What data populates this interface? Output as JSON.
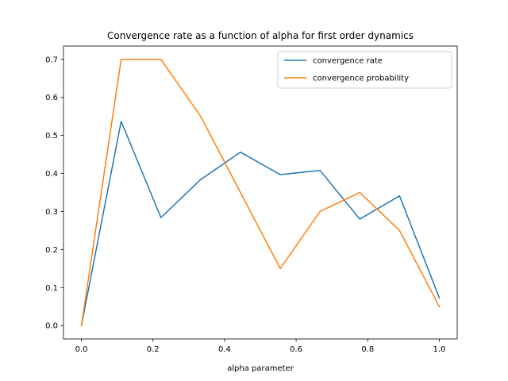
{
  "chart_data": {
    "type": "line",
    "title": "Convergence rate as a function of alpha for first order dynamics",
    "xlabel": "alpha parameter",
    "ylabel": "",
    "x": [
      0.0,
      0.1111,
      0.2222,
      0.3333,
      0.4444,
      0.5556,
      0.6667,
      0.7778,
      0.8889,
      1.0
    ],
    "series": [
      {
        "name": "convergence rate",
        "color": "#1f77b4",
        "values": [
          0.0,
          0.537,
          0.284,
          0.384,
          0.456,
          0.397,
          0.408,
          0.28,
          0.341,
          0.073
        ]
      },
      {
        "name": "convergence probability",
        "color": "#ff7f0e",
        "values": [
          0.0,
          0.7,
          0.7,
          0.55,
          0.35,
          0.15,
          0.3,
          0.35,
          0.25,
          0.05
        ]
      }
    ],
    "xlim": [
      -0.05,
      1.05
    ],
    "ylim": [
      -0.035,
      0.735
    ],
    "xticks": [
      "0.0",
      "0.2",
      "0.4",
      "0.6",
      "0.8",
      "1.0"
    ],
    "yticks": [
      "0.0",
      "0.1",
      "0.2",
      "0.3",
      "0.4",
      "0.5",
      "0.6",
      "0.7"
    ],
    "grid": false,
    "legend_position": "upper-right"
  }
}
